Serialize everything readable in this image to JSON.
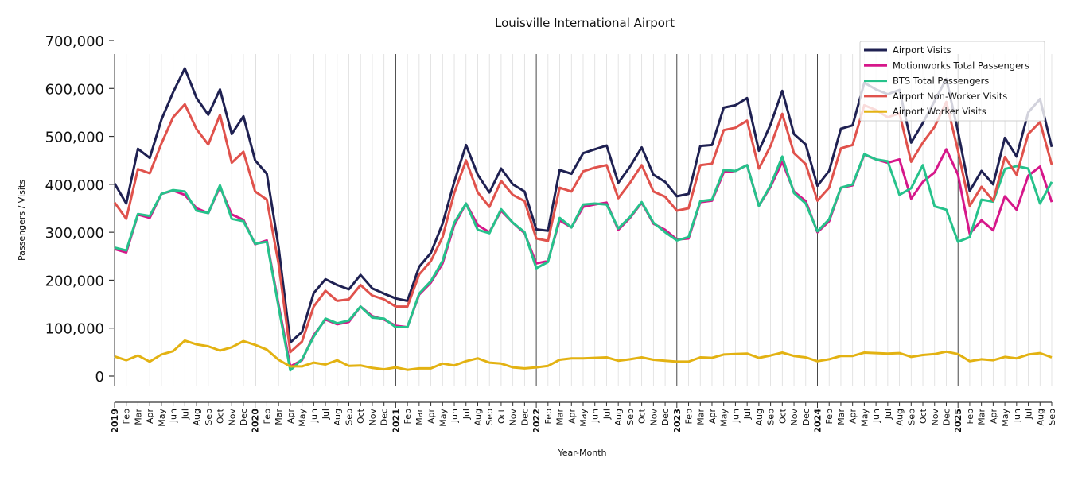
{
  "chart_data": {
    "type": "line",
    "title": "Louisville International Airport",
    "xlabel": "Year-Month",
    "ylabel": "Passengers / Visits",
    "ylim": [
      0,
      700000
    ],
    "yticks": [
      0,
      100000,
      200000,
      300000,
      400000,
      500000,
      600000,
      700000
    ],
    "ytick_labels": [
      "0",
      "100,000",
      "200,000",
      "300,000",
      "400,000",
      "500,000",
      "600,000",
      "700,000"
    ],
    "grid": "vertical monthly lines; darker line at each January",
    "legend_position": "top-right",
    "x": [
      "2019",
      "Feb",
      "Mar",
      "Apr",
      "May",
      "Jun",
      "Jul",
      "Aug",
      "Sep",
      "Oct",
      "Nov",
      "Dec",
      "2020",
      "Feb",
      "Mar",
      "Apr",
      "May",
      "Jun",
      "Jul",
      "Aug",
      "Sep",
      "Oct",
      "Nov",
      "Dec",
      "2021",
      "Feb",
      "Mar",
      "Apr",
      "May",
      "Jun",
      "Jul",
      "Aug",
      "Sep",
      "Oct",
      "Nov",
      "Dec",
      "2022",
      "Feb",
      "Mar",
      "Apr",
      "May",
      "Jun",
      "Jul",
      "Aug",
      "Sep",
      "Oct",
      "Nov",
      "Dec",
      "2023",
      "Feb",
      "Mar",
      "Apr",
      "May",
      "Jun",
      "Jul",
      "Aug",
      "Sep",
      "Oct",
      "Nov",
      "Dec",
      "2024",
      "Feb",
      "Mar",
      "Apr",
      "May",
      "Jun",
      "Jul",
      "Aug",
      "Sep",
      "Oct",
      "Nov",
      "Dec",
      "2025",
      "Feb",
      "Mar",
      "Apr",
      "May",
      "Jun",
      "Jul",
      "Aug",
      "Sep"
    ],
    "series": [
      {
        "name": "Airport Visits",
        "color": "#1f2152",
        "values": [
          402000,
          360000,
          474000,
          455000,
          535000,
          592000,
          642000,
          580000,
          545000,
          598000,
          505000,
          542000,
          450000,
          422000,
          270000,
          70000,
          92000,
          173000,
          202000,
          190000,
          181000,
          211000,
          183000,
          172000,
          162000,
          157000,
          228000,
          257000,
          318000,
          405000,
          482000,
          420000,
          383000,
          433000,
          400000,
          385000,
          306000,
          303000,
          430000,
          422000,
          465000,
          473000,
          481000,
          403000,
          437000,
          477000,
          420000,
          405000,
          375000,
          380000,
          480000,
          482000,
          560000,
          565000,
          580000,
          470000,
          525000,
          595000,
          505000,
          483000,
          397000,
          428000,
          516000,
          523000,
          612000,
          598000,
          588000,
          597000,
          487000,
          528000,
          574000,
          620000,
          510000,
          386000,
          428000,
          400000,
          497000,
          458000,
          550000,
          578000,
          478000
        ]
      },
      {
        "name": "Motionworks Total Passengers",
        "color": "#d6178a",
        "values": [
          265000,
          258000,
          337000,
          330000,
          380000,
          387000,
          378000,
          350000,
          340000,
          395000,
          337000,
          326000,
          275000,
          283000,
          150000,
          20000,
          33000,
          85000,
          118000,
          108000,
          113000,
          145000,
          125000,
          118000,
          105000,
          102000,
          170000,
          195000,
          235000,
          315000,
          360000,
          315000,
          300000,
          345000,
          320000,
          298000,
          235000,
          240000,
          325000,
          310000,
          353000,
          358000,
          362000,
          305000,
          330000,
          362000,
          318000,
          305000,
          285000,
          287000,
          363000,
          366000,
          425000,
          428000,
          440000,
          355000,
          395000,
          447000,
          385000,
          365000,
          300000,
          323000,
          393000,
          398000,
          462000,
          452000,
          445000,
          452000,
          370000,
          405000,
          425000,
          473000,
          420000,
          297000,
          325000,
          304000,
          375000,
          347000,
          418000,
          437000,
          363000
        ]
      },
      {
        "name": "BTS Total Passengers",
        "color": "#26c28b",
        "values": [
          268000,
          262000,
          338000,
          334000,
          380000,
          388000,
          385000,
          345000,
          340000,
          398000,
          328000,
          323000,
          276000,
          280000,
          145000,
          12000,
          35000,
          82000,
          120000,
          110000,
          116000,
          145000,
          122000,
          120000,
          102000,
          102000,
          172000,
          198000,
          240000,
          320000,
          360000,
          305000,
          298000,
          348000,
          320000,
          300000,
          225000,
          238000,
          330000,
          310000,
          358000,
          360000,
          358000,
          308000,
          332000,
          363000,
          320000,
          300000,
          283000,
          290000,
          365000,
          368000,
          430000,
          428000,
          440000,
          355000,
          398000,
          458000,
          382000,
          360000,
          302000,
          327000,
          393000,
          400000,
          463000,
          452000,
          448000,
          378000,
          392000,
          440000,
          354000,
          347000,
          280000,
          290000,
          368000,
          364000,
          432000,
          438000,
          433000,
          360000,
          405000
        ]
      },
      {
        "name": "Airport Non-Worker Visits",
        "color": "#e0524c",
        "values": [
          362000,
          328000,
          432000,
          423000,
          485000,
          540000,
          567000,
          515000,
          483000,
          545000,
          445000,
          468000,
          385000,
          368000,
          235000,
          50000,
          72000,
          145000,
          178000,
          157000,
          160000,
          190000,
          168000,
          160000,
          145000,
          145000,
          212000,
          240000,
          290000,
          382000,
          450000,
          383000,
          353000,
          407000,
          378000,
          365000,
          287000,
          282000,
          393000,
          385000,
          427000,
          435000,
          440000,
          371000,
          403000,
          440000,
          385000,
          374000,
          345000,
          350000,
          440000,
          443000,
          513000,
          518000,
          533000,
          433000,
          480000,
          547000,
          465000,
          442000,
          366000,
          393000,
          475000,
          482000,
          565000,
          555000,
          540000,
          548000,
          447000,
          487000,
          520000,
          572000,
          470000,
          355000,
          395000,
          366000,
          457000,
          420000,
          505000,
          530000,
          441000
        ]
      },
      {
        "name": "Airport Worker Visits",
        "color": "#e3b212",
        "values": [
          41000,
          33000,
          43000,
          30000,
          45000,
          52000,
          74000,
          66000,
          62000,
          53000,
          60000,
          73000,
          65000,
          55000,
          34000,
          20000,
          20000,
          28000,
          24000,
          33000,
          21000,
          22000,
          17000,
          14000,
          18000,
          13000,
          16000,
          16000,
          26000,
          22000,
          31000,
          37000,
          28000,
          26000,
          18000,
          16000,
          18000,
          21000,
          34000,
          37000,
          37000,
          38000,
          39000,
          32000,
          35000,
          39000,
          34000,
          32000,
          30000,
          30000,
          39000,
          38000,
          45000,
          46000,
          47000,
          38000,
          43000,
          49000,
          42000,
          39000,
          31000,
          35000,
          42000,
          42000,
          49000,
          48000,
          47000,
          48000,
          40000,
          44000,
          46000,
          51000,
          46000,
          31000,
          35000,
          33000,
          40000,
          37000,
          45000,
          48000,
          39000
        ]
      }
    ]
  }
}
